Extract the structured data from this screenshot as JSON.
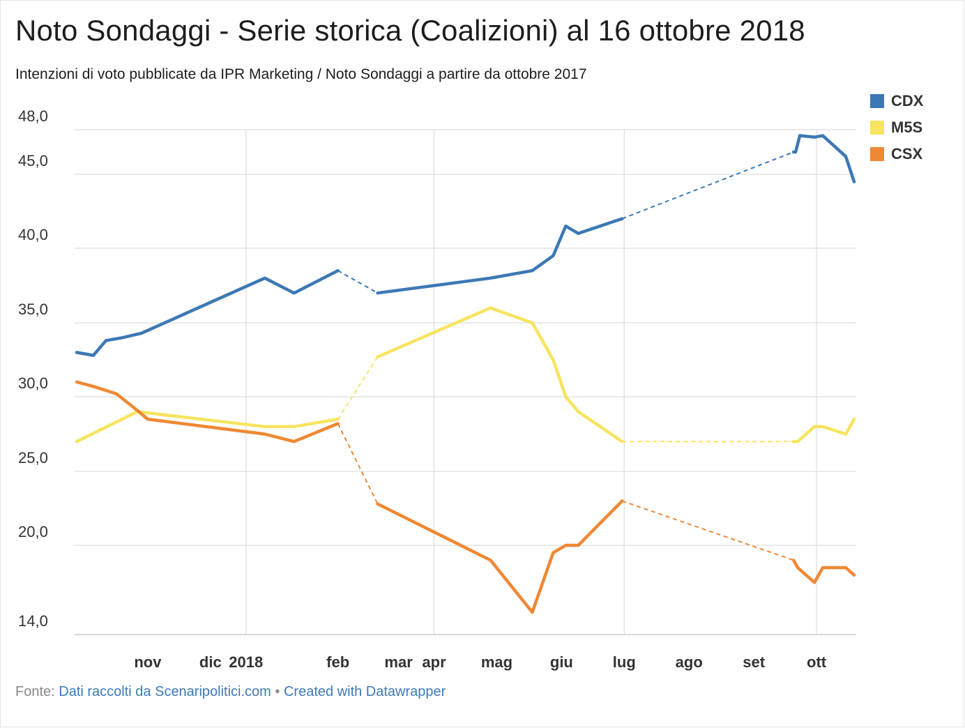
{
  "title": "Noto Sondaggi - Serie storica (Coalizioni) al 16 ottobre 2018",
  "subtitle": "Intenzioni di voto pubblicate da IPR Marketing / Noto Sondaggi a partire da ottobre 2017",
  "source": {
    "prefix": "Fonte:",
    "link": "Dati raccolti da Scenaripolitici.com",
    "separator": "•",
    "credit": "Created with Datawrapper"
  },
  "chart_data": {
    "type": "line",
    "ylim": [
      14,
      48
    ],
    "yticks": [
      14,
      20,
      25,
      30,
      35,
      40,
      45,
      48
    ],
    "ytick_labels": [
      "14,0",
      "20,0",
      "25,0",
      "30,0",
      "35,0",
      "40,0",
      "45,0",
      "48,0"
    ],
    "xlim": [
      "2017-10-11",
      "2018-10-20"
    ],
    "xticks": [
      {
        "label": "nov",
        "date": "2017-11-15",
        "grid": false
      },
      {
        "label": "dic",
        "date": "2017-12-15",
        "grid": false
      },
      {
        "label": "2018",
        "date": "2018-01-01",
        "grid": true
      },
      {
        "label": "feb",
        "date": "2018-02-14",
        "grid": false
      },
      {
        "label": "mar",
        "date": "2018-03-15",
        "grid": false
      },
      {
        "label": "apr",
        "date": "2018-04-01",
        "grid": true
      },
      {
        "label": "mag",
        "date": "2018-05-01",
        "grid": false
      },
      {
        "label": "giu",
        "date": "2018-06-01",
        "grid": false
      },
      {
        "label": "lug",
        "date": "2018-07-01",
        "grid": true
      },
      {
        "label": "ago",
        "date": "2018-08-01",
        "grid": false
      },
      {
        "label": "set",
        "date": "2018-09-01",
        "grid": false
      },
      {
        "label": "ott",
        "date": "2018-10-01",
        "grid": true
      }
    ],
    "grid": true,
    "legend_position": "top-right",
    "series": [
      {
        "name": "CDX",
        "color": "#3c78b4",
        "points": [
          [
            "2017-10-12",
            33.0
          ],
          [
            "2017-10-20",
            32.8
          ],
          [
            "2017-10-26",
            33.8
          ],
          [
            "2017-11-03",
            34.0
          ],
          [
            "2017-11-12",
            34.3
          ],
          [
            "2018-01-10",
            38.0
          ],
          [
            "2018-01-24",
            37.0
          ],
          [
            "2018-02-14",
            38.5
          ],
          [
            "2018-03-05",
            37.0
          ],
          [
            "2018-04-28",
            38.0
          ],
          [
            "2018-05-18",
            38.5
          ],
          [
            "2018-05-28",
            39.5
          ],
          [
            "2018-06-03",
            41.5
          ],
          [
            "2018-06-09",
            41.0
          ],
          [
            "2018-06-30",
            42.0
          ],
          [
            "2018-09-20",
            46.5
          ],
          [
            "2018-09-21",
            46.5
          ],
          [
            "2018-09-23",
            47.6
          ],
          [
            "2018-09-30",
            47.5
          ],
          [
            "2018-10-04",
            47.6
          ],
          [
            "2018-10-15",
            46.2
          ],
          [
            "2018-10-19",
            44.5
          ]
        ],
        "dashed_after": [
          7,
          14
        ]
      },
      {
        "name": "M5S",
        "color": "#f7e45f",
        "points": [
          [
            "2017-10-12",
            27.0
          ],
          [
            "2017-11-10",
            29.0
          ],
          [
            "2018-01-10",
            28.0
          ],
          [
            "2018-01-24",
            28.0
          ],
          [
            "2018-02-14",
            28.5
          ],
          [
            "2018-03-05",
            32.7
          ],
          [
            "2018-04-28",
            36.0
          ],
          [
            "2018-05-18",
            35.0
          ],
          [
            "2018-05-28",
            32.5
          ],
          [
            "2018-06-03",
            30.0
          ],
          [
            "2018-06-09",
            29.0
          ],
          [
            "2018-06-30",
            27.0
          ],
          [
            "2018-09-20",
            27.0
          ],
          [
            "2018-09-22",
            27.0
          ],
          [
            "2018-09-30",
            28.0
          ],
          [
            "2018-10-04",
            28.0
          ],
          [
            "2018-10-15",
            27.5
          ],
          [
            "2018-10-19",
            28.5
          ]
        ],
        "dashed_after": [
          4,
          11
        ]
      },
      {
        "name": "CSX",
        "color": "#ef8833",
        "points": [
          [
            "2017-10-12",
            31.0
          ],
          [
            "2017-10-20",
            30.7
          ],
          [
            "2017-10-31",
            30.2
          ],
          [
            "2017-11-09",
            29.2
          ],
          [
            "2017-11-15",
            28.5
          ],
          [
            "2018-01-10",
            27.5
          ],
          [
            "2018-01-24",
            27.0
          ],
          [
            "2018-02-14",
            28.2
          ],
          [
            "2018-03-05",
            22.8
          ],
          [
            "2018-04-28",
            19.0
          ],
          [
            "2018-05-18",
            15.5
          ],
          [
            "2018-05-28",
            19.5
          ],
          [
            "2018-06-03",
            20.0
          ],
          [
            "2018-06-09",
            20.0
          ],
          [
            "2018-06-30",
            23.0
          ],
          [
            "2018-09-20",
            19.0
          ],
          [
            "2018-09-22",
            18.5
          ],
          [
            "2018-09-30",
            17.5
          ],
          [
            "2018-10-04",
            18.5
          ],
          [
            "2018-10-15",
            18.5
          ],
          [
            "2018-10-19",
            18.0
          ]
        ],
        "dashed_after": [
          7,
          14
        ]
      }
    ]
  }
}
